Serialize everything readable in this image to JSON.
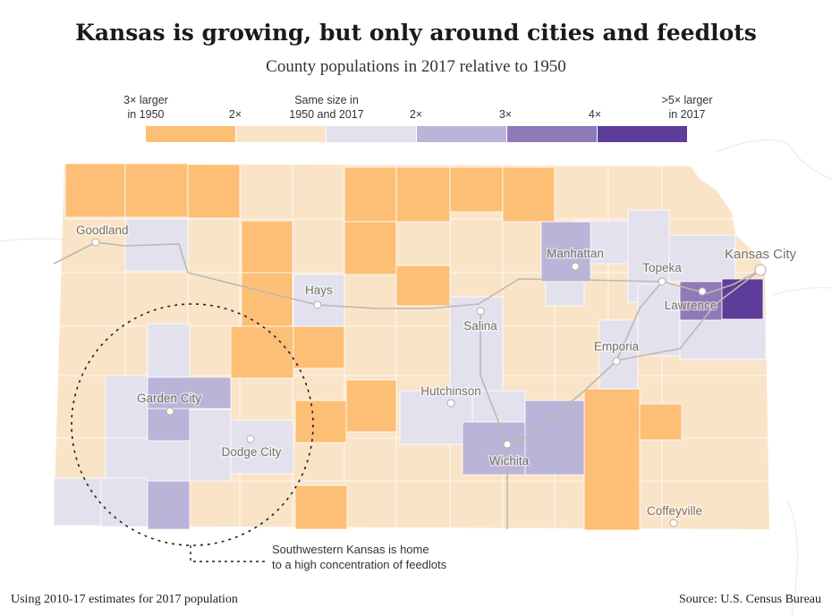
{
  "title": "Kansas is growing, but only around cities and feedlots",
  "subtitle": "County populations in 2017 relative to 1950",
  "legend": {
    "labels": [
      "3× larger\nin 1950",
      "2×",
      "Same size in\n1950 and 2017",
      "2×",
      "3×",
      "4×",
      ">5× larger\nin 2017"
    ],
    "colors": [
      "#fdbf76",
      "#fae4c8",
      "#e3e1ee",
      "#bab4d9",
      "#8e7ab8",
      "#5e3c99"
    ]
  },
  "cities": [
    "Goodland",
    "Hays",
    "Salina",
    "Manhattan",
    "Topeka",
    "Kansas City",
    "Lawrence",
    "Emporia",
    "Hutchinson",
    "Garden City",
    "Dodge City",
    "Wichita",
    "Coffeyville"
  ],
  "annotation": "Southwestern Kansas is home\nto a high concentration of feedlots",
  "footer": {
    "note": "Using 2010-17 estimates for 2017 population",
    "source": "Source: U.S. Census Bureau"
  }
}
